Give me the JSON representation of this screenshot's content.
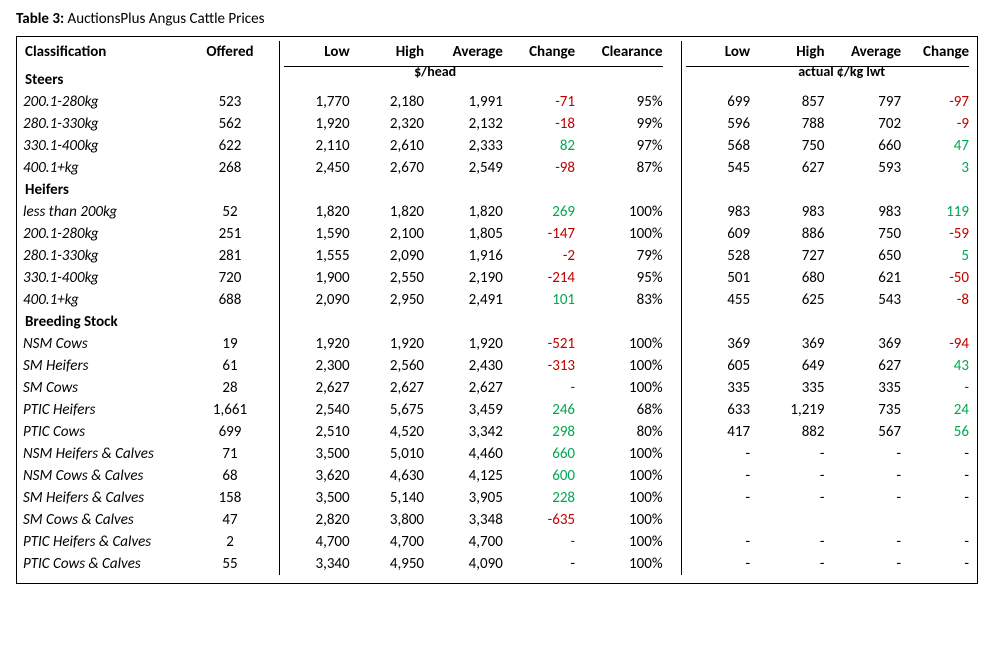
{
  "title_prefix": "Table 3:",
  "title_rest": " AuctionsPlus Angus Cattle Prices",
  "headers": {
    "classification": "Classification",
    "offered": "Offered",
    "low": "Low",
    "high": "High",
    "average": "Average",
    "change": "Change",
    "clearance": "Clearance",
    "unit_head": "$/head",
    "unit_lwt": "actual ¢/kg lwt"
  },
  "sections": [
    {
      "name": "Steers",
      "rows": [
        {
          "cls": "200.1-280kg",
          "off": "523",
          "l1": "1,770",
          "h1": "2,180",
          "a1": "1,991",
          "c1": "-71",
          "c1s": "neg",
          "clr": "95%",
          "l2": "699",
          "h2": "857",
          "a2": "797",
          "c2": "-97",
          "c2s": "neg"
        },
        {
          "cls": "280.1-330kg",
          "off": "562",
          "l1": "1,920",
          "h1": "2,320",
          "a1": "2,132",
          "c1": "-18",
          "c1s": "neg",
          "clr": "99%",
          "l2": "596",
          "h2": "788",
          "a2": "702",
          "c2": "-9",
          "c2s": "neg"
        },
        {
          "cls": "330.1-400kg",
          "off": "622",
          "l1": "2,110",
          "h1": "2,610",
          "a1": "2,333",
          "c1": "82",
          "c1s": "pos",
          "clr": "97%",
          "l2": "568",
          "h2": "750",
          "a2": "660",
          "c2": "47",
          "c2s": "pos"
        },
        {
          "cls": "400.1+kg",
          "off": "268",
          "l1": "2,450",
          "h1": "2,670",
          "a1": "2,549",
          "c1": "-98",
          "c1s": "neg",
          "clr": "87%",
          "l2": "545",
          "h2": "627",
          "a2": "593",
          "c2": "3",
          "c2s": "pos"
        }
      ]
    },
    {
      "name": "Heifers",
      "rows": [
        {
          "cls": "less than 200kg",
          "off": "52",
          "l1": "1,820",
          "h1": "1,820",
          "a1": "1,820",
          "c1": "269",
          "c1s": "pos",
          "clr": "100%",
          "l2": "983",
          "h2": "983",
          "a2": "983",
          "c2": "119",
          "c2s": "pos"
        },
        {
          "cls": "200.1-280kg",
          "off": "251",
          "l1": "1,590",
          "h1": "2,100",
          "a1": "1,805",
          "c1": "-147",
          "c1s": "neg",
          "clr": "100%",
          "l2": "609",
          "h2": "886",
          "a2": "750",
          "c2": "-59",
          "c2s": "neg"
        },
        {
          "cls": "280.1-330kg",
          "off": "281",
          "l1": "1,555",
          "h1": "2,090",
          "a1": "1,916",
          "c1": "-2",
          "c1s": "neg",
          "clr": "79%",
          "l2": "528",
          "h2": "727",
          "a2": "650",
          "c2": "5",
          "c2s": "pos"
        },
        {
          "cls": "330.1-400kg",
          "off": "720",
          "l1": "1,900",
          "h1": "2,550",
          "a1": "2,190",
          "c1": "-214",
          "c1s": "neg",
          "clr": "95%",
          "l2": "501",
          "h2": "680",
          "a2": "621",
          "c2": "-50",
          "c2s": "neg"
        },
        {
          "cls": "400.1+kg",
          "off": "688",
          "l1": "2,090",
          "h1": "2,950",
          "a1": "2,491",
          "c1": "101",
          "c1s": "pos",
          "clr": "83%",
          "l2": "455",
          "h2": "625",
          "a2": "543",
          "c2": "-8",
          "c2s": "neg"
        }
      ]
    },
    {
      "name": "Breeding Stock",
      "rows": [
        {
          "cls": "NSM Cows",
          "off": "19",
          "l1": "1,920",
          "h1": "1,920",
          "a1": "1,920",
          "c1": "-521",
          "c1s": "neg",
          "clr": "100%",
          "l2": "369",
          "h2": "369",
          "a2": "369",
          "c2": "-94",
          "c2s": "neg"
        },
        {
          "cls": "SM Heifers",
          "off": "61",
          "l1": "2,300",
          "h1": "2,560",
          "a1": "2,430",
          "c1": "-313",
          "c1s": "neg",
          "clr": "100%",
          "l2": "605",
          "h2": "649",
          "a2": "627",
          "c2": "43",
          "c2s": "pos"
        },
        {
          "cls": "SM Cows",
          "off": "28",
          "l1": "2,627",
          "h1": "2,627",
          "a1": "2,627",
          "c1": "-",
          "c1s": "neg",
          "clr": "100%",
          "l2": "335",
          "h2": "335",
          "a2": "335",
          "c2": "-",
          "c2s": "neg"
        },
        {
          "cls": "PTIC Heifers",
          "off": "1,661",
          "l1": "2,540",
          "h1": "5,675",
          "a1": "3,459",
          "c1": "246",
          "c1s": "pos",
          "clr": "68%",
          "l2": "633",
          "h2": "1,219",
          "a2": "735",
          "c2": "24",
          "c2s": "pos"
        },
        {
          "cls": "PTIC Cows",
          "off": "699",
          "l1": "2,510",
          "h1": "4,520",
          "a1": "3,342",
          "c1": "298",
          "c1s": "pos",
          "clr": "80%",
          "l2": "417",
          "h2": "882",
          "a2": "567",
          "c2": "56",
          "c2s": "pos"
        },
        {
          "cls": "NSM Heifers & Calves",
          "off": "71",
          "l1": "3,500",
          "h1": "5,010",
          "a1": "4,460",
          "c1": "660",
          "c1s": "pos",
          "clr": "100%",
          "l2": "-",
          "h2": "-",
          "a2": "-",
          "c2": "-",
          "c2s": ""
        },
        {
          "cls": "NSM Cows & Calves",
          "off": "68",
          "l1": "3,620",
          "h1": "4,630",
          "a1": "4,125",
          "c1": "600",
          "c1s": "pos",
          "clr": "100%",
          "l2": "-",
          "h2": "-",
          "a2": "-",
          "c2": "-",
          "c2s": ""
        },
        {
          "cls": "SM Heifers & Calves",
          "off": "158",
          "l1": "3,500",
          "h1": "5,140",
          "a1": "3,905",
          "c1": "228",
          "c1s": "pos",
          "clr": "100%",
          "l2": "-",
          "h2": "-",
          "a2": "-",
          "c2": "-",
          "c2s": ""
        },
        {
          "cls": "SM Cows & Calves",
          "off": "47",
          "l1": "2,820",
          "h1": "3,800",
          "a1": "3,348",
          "c1": "-635",
          "c1s": "neg",
          "clr": "100%",
          "l2": "",
          "h2": "",
          "a2": "",
          "c2": "",
          "c2s": ""
        },
        {
          "cls": "PTIC Heifers & Calves",
          "off": "2",
          "l1": "4,700",
          "h1": "4,700",
          "a1": "4,700",
          "c1": "-",
          "c1s": "neg",
          "clr": "100%",
          "l2": "-",
          "h2": "-",
          "a2": "-",
          "c2": "-",
          "c2s": ""
        },
        {
          "cls": "PTIC Cows & Calves",
          "off": "55",
          "l1": "3,340",
          "h1": "4,950",
          "a1": "4,090",
          "c1": "-",
          "c1s": "",
          "clr": "100%",
          "l2": "-",
          "h2": "-",
          "a2": "-",
          "c2": "-",
          "c2s": ""
        }
      ]
    }
  ]
}
